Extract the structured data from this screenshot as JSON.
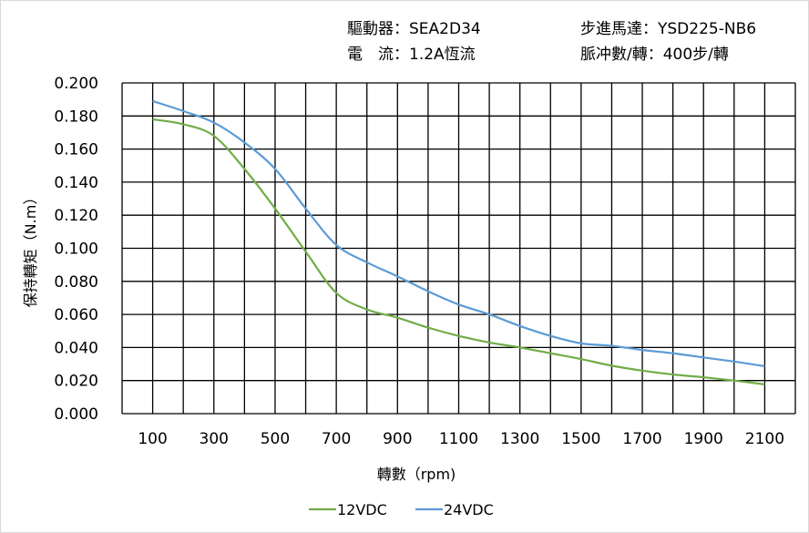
{
  "header": {
    "driver_label": "驅動器：",
    "driver_value": "SEA2D34",
    "motor_label": "步進馬達：",
    "motor_value": "YSD225-NB6",
    "current_label": "電　流：",
    "current_value": "1.2A恆流",
    "pulse_label": "脈冲數/轉：",
    "pulse_value": "400步/轉"
  },
  "chart_data": {
    "type": "line",
    "xlabel": "轉數（rpm)",
    "ylabel": "保持轉矩（N.m）",
    "xlim": [
      0,
      2200
    ],
    "ylim": [
      0,
      0.2
    ],
    "grid": true,
    "legend_position": "bottom",
    "x_ticks": [
      "100",
      "300",
      "500",
      "700",
      "900",
      "1100",
      "1300",
      "1500",
      "1700",
      "1900",
      "2100"
    ],
    "y_ticks": [
      "0.000",
      "0.020",
      "0.040",
      "0.060",
      "0.080",
      "0.100",
      "0.120",
      "0.140",
      "0.160",
      "0.180",
      "0.200"
    ],
    "x": [
      100,
      200,
      300,
      400,
      500,
      600,
      700,
      800,
      900,
      1000,
      1100,
      1200,
      1300,
      1400,
      1500,
      1600,
      1700,
      1800,
      1900,
      2000,
      2100
    ],
    "series": [
      {
        "name": "12VDC",
        "color": "#70ad47",
        "values": [
          0.178,
          0.175,
          0.168,
          0.148,
          0.124,
          0.098,
          0.073,
          0.063,
          0.058,
          0.052,
          0.047,
          0.043,
          0.04,
          0.0365,
          0.033,
          0.029,
          0.026,
          0.0237,
          0.022,
          0.02,
          0.0177
        ]
      },
      {
        "name": "24VDC",
        "color": "#5b9bd5",
        "values": [
          0.189,
          0.183,
          0.176,
          0.164,
          0.148,
          0.124,
          0.102,
          0.0915,
          0.083,
          0.074,
          0.066,
          0.06,
          0.053,
          0.047,
          0.0425,
          0.041,
          0.0385,
          0.0365,
          0.034,
          0.0315,
          0.0287
        ]
      }
    ]
  }
}
